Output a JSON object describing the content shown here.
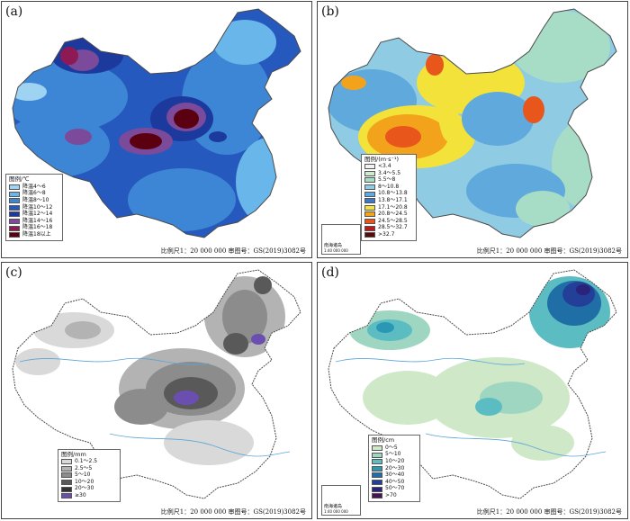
{
  "panels": [
    {
      "id": "a",
      "label": "(a)",
      "legend_title": "图例/℃",
      "legend_items": [
        {
          "label": "降温4～6",
          "color": "#9fd3f2"
        },
        {
          "label": "降温6～8",
          "color": "#69b6ea"
        },
        {
          "label": "降温8～10",
          "color": "#3d86d6"
        },
        {
          "label": "降温10～12",
          "color": "#2659bd"
        },
        {
          "label": "降温12～14",
          "color": "#1c3a9e"
        },
        {
          "label": "降温14～16",
          "color": "#7b4a9a"
        },
        {
          "label": "降温16～18",
          "color": "#8e1a55"
        },
        {
          "label": "降温18以上",
          "color": "#5b0010"
        }
      ]
    },
    {
      "id": "b",
      "label": "(b)",
      "legend_title": "图例/(m·s⁻¹)",
      "legend_items": [
        {
          "label": "<3.4",
          "color": "#f2f2f2"
        },
        {
          "label": "3.4～5.5",
          "color": "#cdeccd"
        },
        {
          "label": "5.5～8",
          "color": "#a7dcc6"
        },
        {
          "label": "8～10.8",
          "color": "#8fcbe3"
        },
        {
          "label": "10.8～13.8",
          "color": "#5fa9dc"
        },
        {
          "label": "13.8～17.1",
          "color": "#3b78c8"
        },
        {
          "label": "17.1～20.8",
          "color": "#f2e23a"
        },
        {
          "label": "20.8～24.5",
          "color": "#f3a21c"
        },
        {
          "label": "24.5～28.5",
          "color": "#e8561c"
        },
        {
          "label": "28.5～32.7",
          "color": "#b81b1b"
        },
        {
          "label": ">32.7",
          "color": "#5b0a0a"
        }
      ]
    },
    {
      "id": "c",
      "label": "(c)",
      "legend_title": "图例/mm",
      "legend_items": [
        {
          "label": "0.1～2.5",
          "color": "#d9d9d9"
        },
        {
          "label": "2.5～5",
          "color": "#b3b3b3"
        },
        {
          "label": "5～10",
          "color": "#8c8c8c"
        },
        {
          "label": "10～20",
          "color": "#595959"
        },
        {
          "label": "20～30",
          "color": "#333333"
        },
        {
          "label": "≥30",
          "color": "#6b4fb0"
        }
      ]
    },
    {
      "id": "d",
      "label": "(d)",
      "legend_title": "图例/cm",
      "legend_items": [
        {
          "label": "0～5",
          "color": "#cfe9c8"
        },
        {
          "label": "5～10",
          "color": "#9fd6c2"
        },
        {
          "label": "10～20",
          "color": "#5bbdc2"
        },
        {
          "label": "20～30",
          "color": "#2a98b5"
        },
        {
          "label": "30～40",
          "color": "#1f6fa6"
        },
        {
          "label": "40～50",
          "color": "#243f98"
        },
        {
          "label": "50～70",
          "color": "#2b227a"
        },
        {
          "label": ">70",
          "color": "#4a1057"
        }
      ]
    }
  ],
  "scale_text": "比例尺1：20 000 000  审图号：GS(2019)3082号",
  "inset_label": "南海诸岛",
  "inset_scale": "1:40 000 000",
  "colors": {
    "border": "#4a4a4a",
    "coast": "#5aa5d8",
    "river": "#5aa5d8"
  }
}
